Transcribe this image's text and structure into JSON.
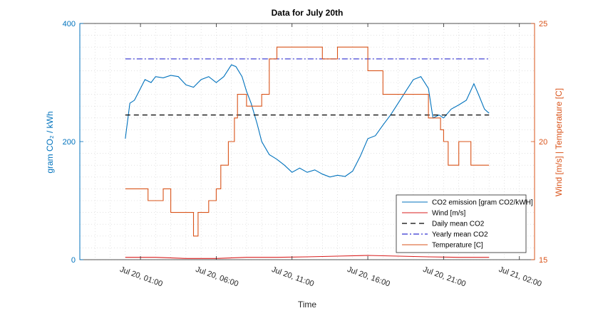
{
  "chart_data": {
    "type": "line",
    "title": "Data for July 20th",
    "xlabel": "Time",
    "ylabel_left": "gram CO₂ / kWh",
    "ylabel_right": "Wind [m/s] | Temperature [C]",
    "x_unit": "hours since Jul 20, 00:00",
    "xlim": [
      -3,
      27
    ],
    "x_ticks": [
      1,
      6,
      11,
      16,
      21,
      26
    ],
    "x_tick_labels": [
      "Jul 20, 01:00",
      "Jul 20, 06:00",
      "Jul 20, 11:00",
      "Jul 20, 16:00",
      "Jul 20, 21:00",
      "Jul 21, 02:00"
    ],
    "ylim_left": [
      0,
      400
    ],
    "y_ticks_left": [
      0,
      200,
      400
    ],
    "ylim_right": [
      15,
      25
    ],
    "y_ticks_right": [
      15,
      20,
      25
    ],
    "grid": "dotted",
    "legend_position": "bottom-right",
    "colors": {
      "co2": "#0072BD",
      "wind": "#D91E1E",
      "daily_mean": "#000000",
      "yearly_mean": "#3030D0",
      "temperature": "#D95319",
      "left_axis": "#0072BD",
      "right_axis": "#D95319"
    },
    "series": [
      {
        "name": "CO₂ emission [gram CO₂/kWH]",
        "legend_label": "CO2 emission [gram CO2/kWH]",
        "axis": "left",
        "style": "solid",
        "x": [
          0.0,
          0.3,
          0.6,
          1.0,
          1.3,
          1.7,
          2.0,
          2.5,
          3.0,
          3.5,
          4.0,
          4.5,
          5.0,
          5.5,
          6.0,
          6.5,
          7.0,
          7.3,
          7.7,
          8.0,
          8.3,
          8.7,
          9.0,
          9.5,
          10.0,
          10.5,
          11.0,
          11.5,
          12.0,
          12.5,
          13.0,
          13.5,
          14.0,
          14.5,
          15.0,
          15.5,
          16.0,
          16.5,
          17.0,
          17.5,
          18.0,
          18.5,
          19.0,
          19.5,
          20.0,
          20.3,
          20.7,
          21.0,
          21.5,
          22.0,
          22.5,
          23.0,
          23.3,
          23.7,
          24.0
        ],
        "y": [
          205,
          265,
          270,
          290,
          305,
          300,
          310,
          308,
          312,
          310,
          296,
          292,
          305,
          310,
          300,
          310,
          330,
          327,
          310,
          285,
          265,
          230,
          200,
          178,
          170,
          160,
          148,
          155,
          148,
          152,
          145,
          140,
          143,
          141,
          150,
          175,
          205,
          210,
          228,
          245,
          265,
          285,
          305,
          310,
          290,
          240,
          245,
          240,
          255,
          262,
          270,
          298,
          280,
          255,
          248
        ]
      },
      {
        "name": "Wind [m/s]",
        "legend_label": "Wind [m/s]",
        "axis": "right",
        "style": "solid",
        "x": [
          0,
          2,
          4,
          6,
          8,
          10,
          12,
          14,
          16,
          18,
          20,
          22,
          24
        ],
        "y": [
          15.1,
          15.1,
          15.05,
          15.05,
          15.1,
          15.1,
          15.12,
          15.15,
          15.18,
          15.15,
          15.12,
          15.1,
          15.1
        ]
      },
      {
        "name": "Daily mean CO₂",
        "legend_label": "Daily mean CO2",
        "axis": "left",
        "style": "dashed",
        "x": [
          0,
          24
        ],
        "y": [
          245,
          245
        ]
      },
      {
        "name": "Yearly mean CO₂",
        "legend_label": "Yearly mean CO2",
        "axis": "left",
        "style": "dashdot",
        "x": [
          0,
          24
        ],
        "y": [
          340,
          340
        ]
      },
      {
        "name": "Temperature [C]",
        "legend_label": "Temperature [C]",
        "axis": "right",
        "style": "step",
        "x": [
          0,
          1.5,
          2.5,
          3.0,
          4.0,
          4.5,
          4.8,
          5.5,
          6.0,
          6.3,
          6.8,
          7.2,
          7.4,
          7.7,
          8.0,
          9.0,
          9.5,
          10.0,
          10.5,
          11.0,
          12.0,
          13.0,
          14.0,
          15.0,
          16.0,
          17.0,
          17.5,
          18.0,
          19.0,
          20.0,
          20.8,
          21.0,
          21.3,
          21.6,
          22.0,
          22.8,
          23.3,
          24.0
        ],
        "y": [
          18,
          17.5,
          18,
          17,
          17,
          16,
          17,
          17.5,
          18,
          19,
          20,
          21,
          22,
          22,
          21.5,
          22,
          23.5,
          24,
          24,
          24,
          24,
          23.5,
          24,
          24,
          23,
          22,
          22,
          22,
          22,
          21,
          20.5,
          20,
          19,
          19,
          20,
          19,
          19,
          19
        ]
      }
    ]
  }
}
